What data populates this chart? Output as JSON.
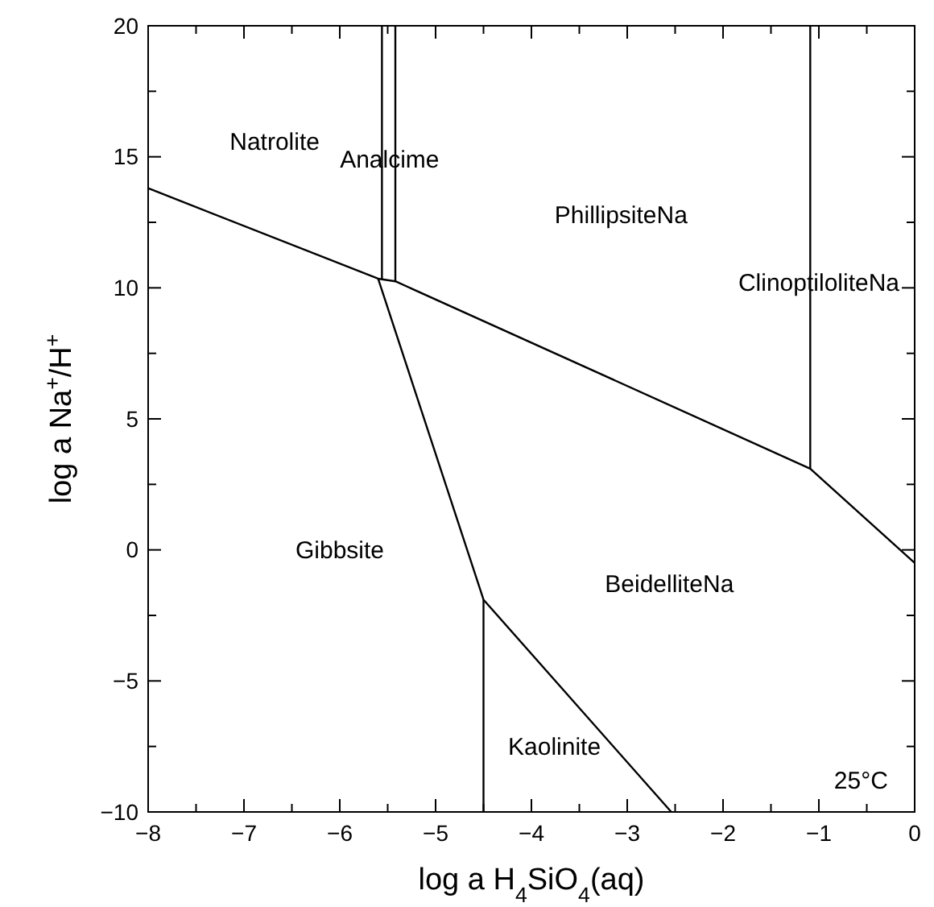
{
  "chart_data": {
    "type": "line",
    "xlabel": "log a H$_{4}$SiO$_{4}$(aq)",
    "ylabel": "log a Na$^{+}$/H$^{+}$",
    "xlim": [
      -8,
      0
    ],
    "ylim": [
      -10,
      20
    ],
    "xticks": [
      -8,
      {
        "value": -7.5,
        "label": null
      },
      -7,
      {
        "value": -6.5,
        "label": null
      },
      -6,
      {
        "value": -5.5,
        "label": null
      },
      -5,
      {
        "value": -4.5,
        "label": null
      },
      -4,
      {
        "value": -3.5,
        "label": null
      },
      -3,
      {
        "value": -2.5,
        "label": null
      },
      -2,
      {
        "value": -1.5,
        "label": null
      },
      -1,
      {
        "value": -0.5,
        "label": null
      },
      0
    ],
    "yticks": [
      -10,
      {
        "value": -7.5,
        "label": null
      },
      -5,
      {
        "value": -2.5,
        "label": null
      },
      0,
      {
        "value": 2.5,
        "label": null
      },
      5,
      {
        "value": 7.5,
        "label": null
      },
      10,
      {
        "value": 12.5,
        "label": null
      },
      15,
      {
        "value": 17.5,
        "label": null
      },
      20
    ],
    "grid": false,
    "marker": "none",
    "line_style": "solid",
    "series": [
      {
        "color": "#000000",
        "x": [
          -8,
          -5.6,
          -5.42,
          -1.09,
          0
        ],
        "values": [
          13.8,
          10.35,
          10.25,
          3.1,
          -0.5
        ]
      },
      {
        "color": "#000000",
        "x": [
          -5.56,
          -5.56
        ],
        "values": [
          10.35,
          20
        ]
      },
      {
        "color": "#000000",
        "x": [
          -5.42,
          -5.42
        ],
        "values": [
          10.25,
          20
        ]
      },
      {
        "color": "#000000",
        "x": [
          -1.09,
          -1.09
        ],
        "values": [
          3.1,
          20
        ]
      },
      {
        "color": "#000000",
        "x": [
          -5.6,
          -4.5,
          -2.54
        ],
        "values": [
          10.35,
          -1.9,
          -10
        ]
      },
      {
        "color": "#000000",
        "x": [
          -4.5,
          -4.5
        ],
        "values": [
          -1.9,
          -10
        ]
      }
    ],
    "annotations": [
      "Natrolite",
      "Analcime",
      "PhillipsiteNa",
      "ClinoptiloliteNa",
      "Gibbsite",
      "BeidelliteNa",
      "Kaolinite",
      "25°C"
    ]
  }
}
